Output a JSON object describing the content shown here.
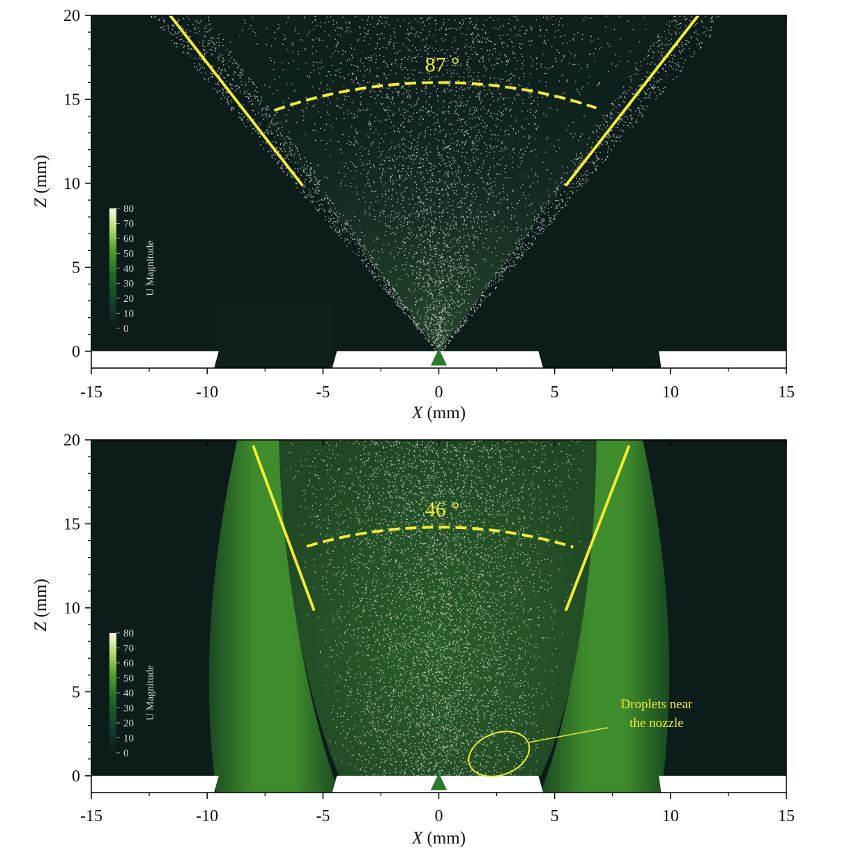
{
  "chart_data": [
    {
      "type": "heatmap",
      "panel": "top",
      "xlabel": "X (mm)",
      "ylabel": "Z (mm)",
      "xlim": [
        -15,
        15
      ],
      "ylim": [
        -1,
        20
      ],
      "xticks": [
        -15,
        -10,
        -5,
        0,
        5,
        10,
        15
      ],
      "yticks": [
        0,
        5,
        10,
        15,
        20
      ],
      "xtick_labels": [
        "-15",
        "-10",
        "-5",
        "0",
        "5",
        "10",
        "15"
      ],
      "ytick_labels": [
        "0",
        "5",
        "10",
        "15",
        "20"
      ],
      "colorbar": {
        "label": "U Magnitude",
        "ticks": [
          0,
          10,
          20,
          30,
          40,
          50,
          60,
          70,
          80
        ],
        "tick_labels": [
          "0",
          "10",
          "20",
          "30",
          "40",
          "50",
          "60",
          "70",
          "80"
        ],
        "range": [
          0,
          80
        ],
        "colors": [
          "#0b1c1b",
          "#153b2b",
          "#1f6b24",
          "#4fa02a",
          "#bde07a",
          "#fffbe0"
        ]
      },
      "spray_angle_label": "87 °",
      "spray_angle_deg": 87,
      "cone_lines": [
        {
          "from": [
            -5.9,
            9.9
          ],
          "to": [
            -11.6,
            20
          ]
        },
        {
          "from": [
            5.5,
            9.9
          ],
          "to": [
            11.2,
            20
          ]
        }
      ],
      "angle_arc": {
        "center": [
          0,
          0
        ],
        "radius": 16,
        "x_range": [
          -7.1,
          6.8
        ]
      },
      "spray_edge_x_at_z20": [
        -11,
        11
      ],
      "annotation": null,
      "colors": {
        "background": "#0c1c1b",
        "annotation": "#f2ec32",
        "droplets": "#d9d9d9"
      }
    },
    {
      "type": "heatmap",
      "panel": "bottom",
      "xlabel": "X (mm)",
      "ylabel": "Z (mm)",
      "xlim": [
        -15,
        15
      ],
      "ylim": [
        -1,
        20
      ],
      "xticks": [
        -15,
        -10,
        -5,
        0,
        5,
        10,
        15
      ],
      "yticks": [
        0,
        5,
        10,
        15,
        20
      ],
      "xtick_labels": [
        "-15",
        "-10",
        "-5",
        "0",
        "5",
        "10",
        "15"
      ],
      "ytick_labels": [
        "0",
        "5",
        "10",
        "15",
        "20"
      ],
      "colorbar": {
        "label": "U Magnitude",
        "ticks": [
          0,
          10,
          20,
          30,
          40,
          50,
          60,
          70,
          80
        ],
        "tick_labels": [
          "0",
          "10",
          "20",
          "30",
          "40",
          "50",
          "60",
          "70",
          "80"
        ],
        "range": [
          0,
          80
        ],
        "colors": [
          "#0b1c1b",
          "#153b2b",
          "#1f6b24",
          "#4fa02a",
          "#bde07a",
          "#fffbe0"
        ]
      },
      "spray_angle_label": "46 °",
      "spray_angle_deg": 46,
      "cone_lines": [
        {
          "from": [
            -5.4,
            9.9
          ],
          "to": [
            -8,
            19.6
          ]
        },
        {
          "from": [
            5.5,
            9.9
          ],
          "to": [
            8.2,
            19.6
          ]
        }
      ],
      "angle_arc": {
        "center": [
          0,
          0
        ],
        "radius": 14.8,
        "x_range": [
          -5.7,
          5.8
        ]
      },
      "spray_edge_x_at_z20": [
        -8,
        8
      ],
      "annotation": {
        "text_lines": [
          "Droplets near",
          "the nozzle"
        ],
        "ellipse_center": [
          2.6,
          1.3
        ],
        "ellipse_radii": [
          1.35,
          1.25
        ],
        "text_anchor": [
          9.4,
          3.2
        ]
      },
      "colors": {
        "background": "#0c1c1b",
        "annotation": "#f2ec32",
        "droplets": "#d9d9d9"
      }
    }
  ]
}
